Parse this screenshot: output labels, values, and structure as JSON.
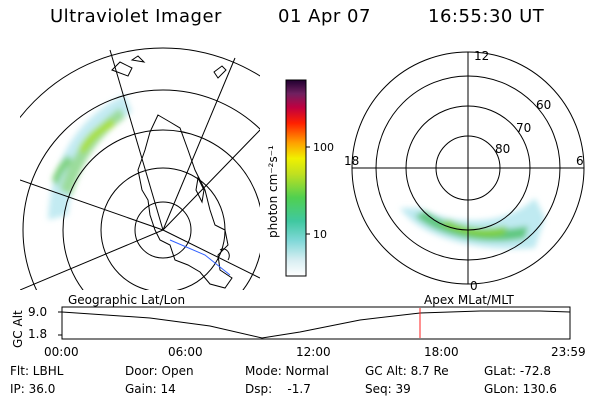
{
  "header": {
    "title": "Ultraviolet Imager",
    "date": "01 Apr 07",
    "time": "16:55:30 UT"
  },
  "colorbar": {
    "unit_label": "photon cm⁻²s⁻¹",
    "ticks": [
      "100",
      "10"
    ]
  },
  "polar_plot": {
    "mlt_labels": {
      "top": "12",
      "right": "6",
      "bottom": "0",
      "left": "18"
    },
    "lat_labels": [
      "60",
      "70",
      "80"
    ]
  },
  "timeline": {
    "left_label": "Geographic Lat/Lon",
    "right_label": "Apex MLat/MLT",
    "axis_title": "GC Alt",
    "y_ticks": [
      "9.0",
      "1.8"
    ],
    "x_ticks": [
      "00:00",
      "06:00",
      "12:00",
      "18:00",
      "23:59"
    ],
    "marker_color": "#ff2020"
  },
  "footer": {
    "flt": "Flt: LBHL",
    "ip": "IP: 36.0",
    "door": "Door: Open",
    "gain": "Gain: 14",
    "mode": "Mode: Normal",
    "dsp": "Dsp:    -1.7",
    "gc_alt": "GC Alt: 8.7 Re",
    "seq": "Seq: 39",
    "glat": "GLat: -72.8",
    "glon": "GLon: 130.6"
  }
}
